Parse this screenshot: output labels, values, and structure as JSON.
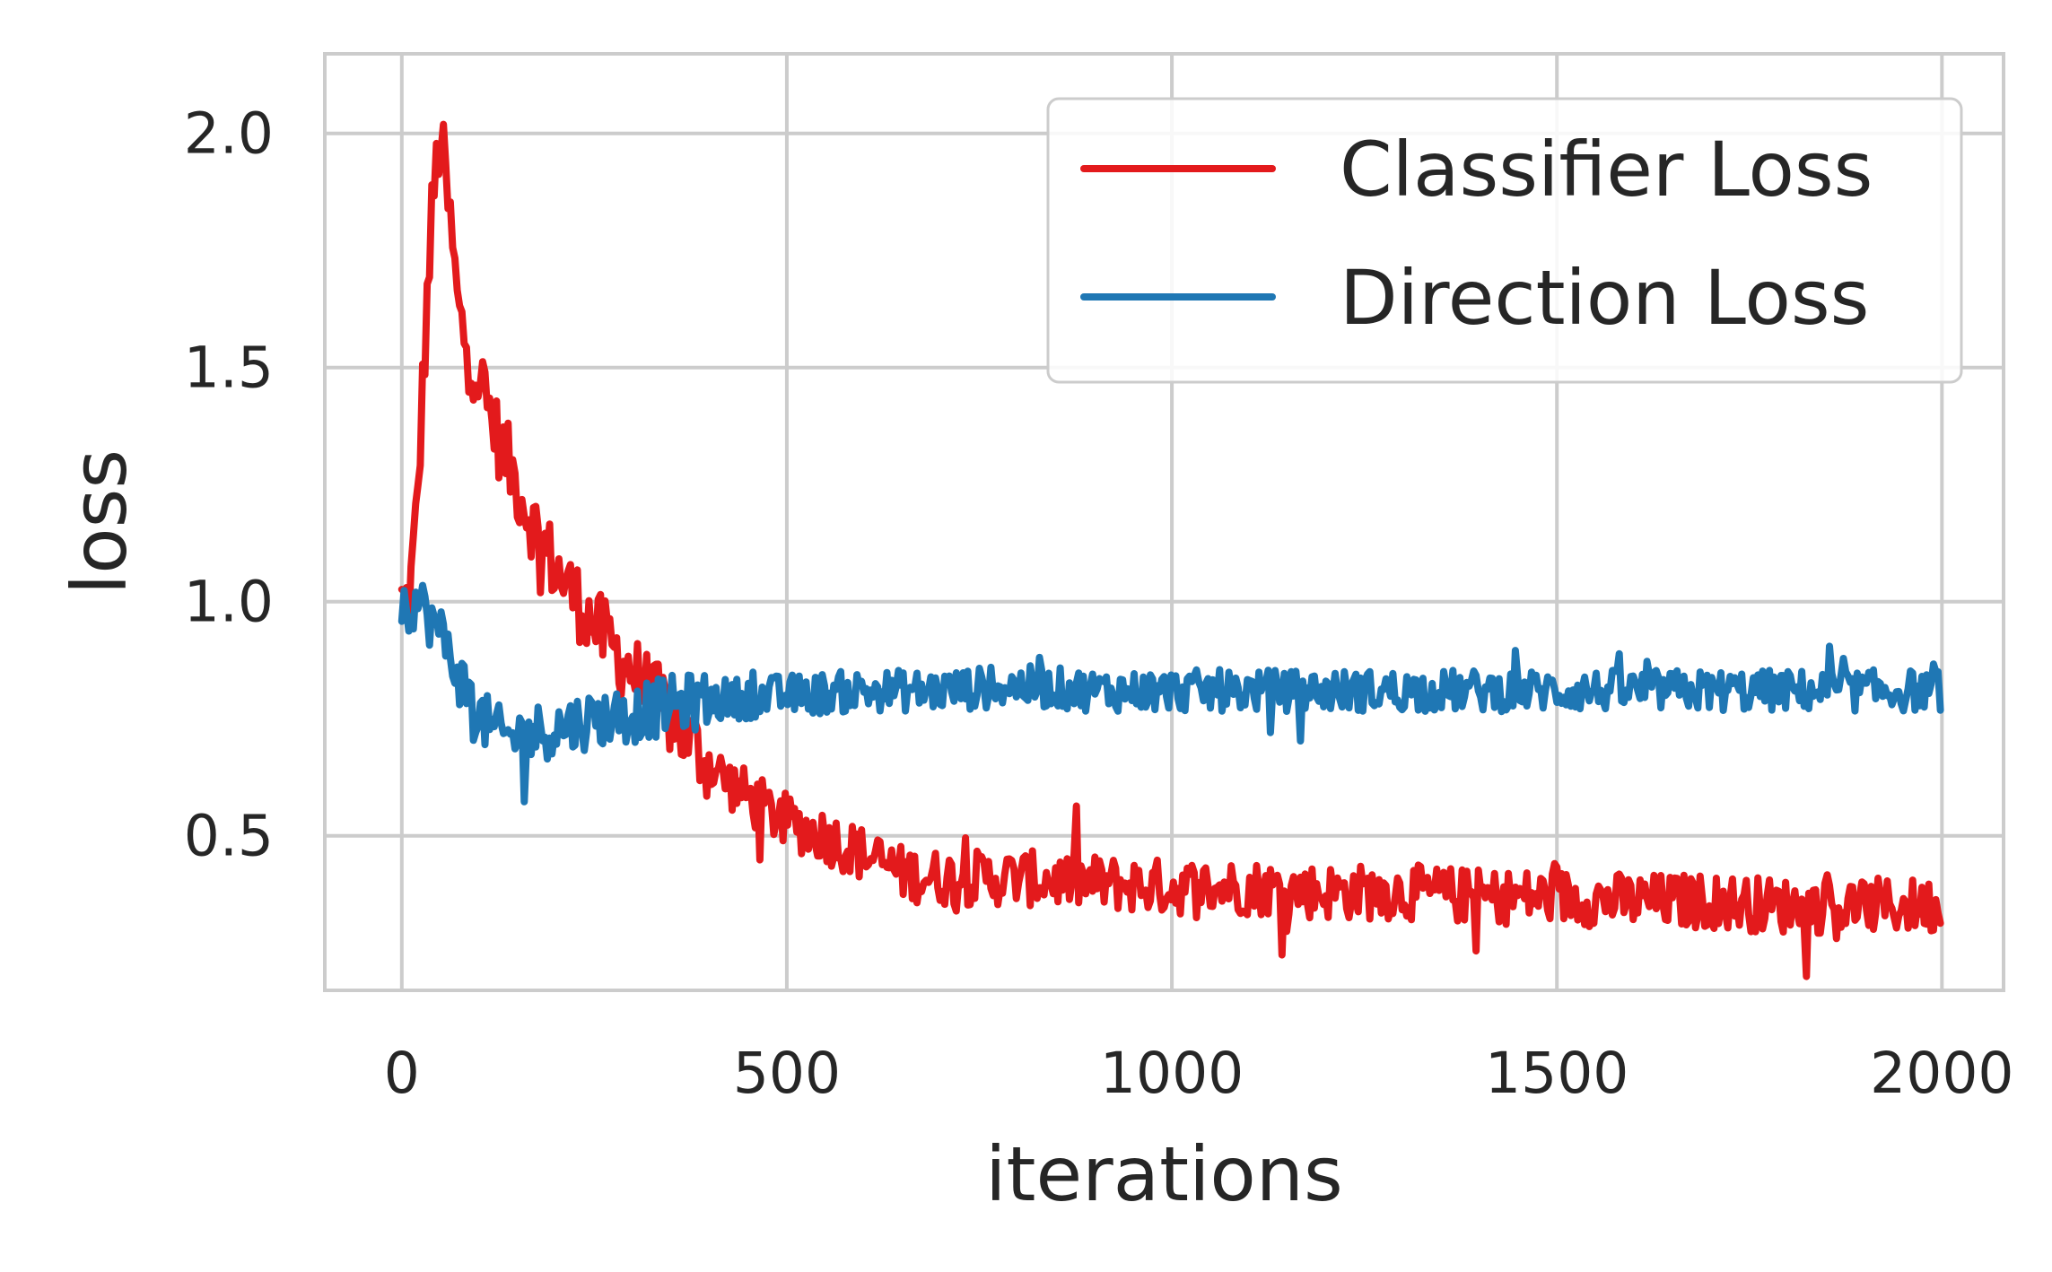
{
  "chart_data": {
    "type": "line",
    "title": "",
    "xlabel": "iterations",
    "ylabel": "loss",
    "xlim": [
      -100,
      2080
    ],
    "ylim": [
      0.17,
      2.17
    ],
    "xticks": [
      0,
      500,
      1000,
      1500,
      2000
    ],
    "xtick_labels": [
      "0",
      "500",
      "1000",
      "1500",
      "2000"
    ],
    "yticks": [
      0.5,
      1.0,
      1.5,
      2.0
    ],
    "ytick_labels": [
      "0.5",
      "1.0",
      "1.5",
      "2.0"
    ],
    "grid": true,
    "legend_position": "upper right",
    "series": [
      {
        "name": "Classifier Loss",
        "color": "#e31a1c",
        "noise": 0.06,
        "x": [
          0,
          10,
          20,
          30,
          40,
          50,
          60,
          75,
          100,
          125,
          150,
          175,
          200,
          250,
          300,
          350,
          400,
          450,
          500,
          550,
          600,
          650,
          700,
          800,
          900,
          1000,
          1100,
          1200,
          1300,
          1400,
          1500,
          1600,
          1700,
          1800,
          1900,
          2000
        ],
        "y": [
          1.0,
          1.0,
          1.2,
          1.55,
          1.85,
          2.0,
          1.85,
          1.6,
          1.48,
          1.35,
          1.25,
          1.15,
          1.07,
          0.95,
          0.85,
          0.75,
          0.65,
          0.58,
          0.53,
          0.5,
          0.46,
          0.42,
          0.41,
          0.41,
          0.4,
          0.39,
          0.39,
          0.38,
          0.38,
          0.37,
          0.37,
          0.36,
          0.36,
          0.35,
          0.35,
          0.35
        ]
      },
      {
        "name": "Direction Loss",
        "color": "#1f77b4",
        "noise": 0.045,
        "x": [
          0,
          20,
          40,
          60,
          80,
          100,
          120,
          140,
          170,
          200,
          250,
          300,
          350,
          400,
          500,
          600,
          700,
          800,
          900,
          1000,
          1100,
          1200,
          1300,
          1400,
          1500,
          1600,
          1700,
          1800,
          1900,
          2000
        ],
        "y": [
          1.0,
          1.0,
          0.96,
          0.9,
          0.82,
          0.76,
          0.72,
          0.71,
          0.72,
          0.73,
          0.75,
          0.76,
          0.78,
          0.79,
          0.8,
          0.81,
          0.81,
          0.82,
          0.81,
          0.81,
          0.81,
          0.81,
          0.81,
          0.81,
          0.81,
          0.81,
          0.81,
          0.81,
          0.81,
          0.81
        ]
      }
    ]
  }
}
